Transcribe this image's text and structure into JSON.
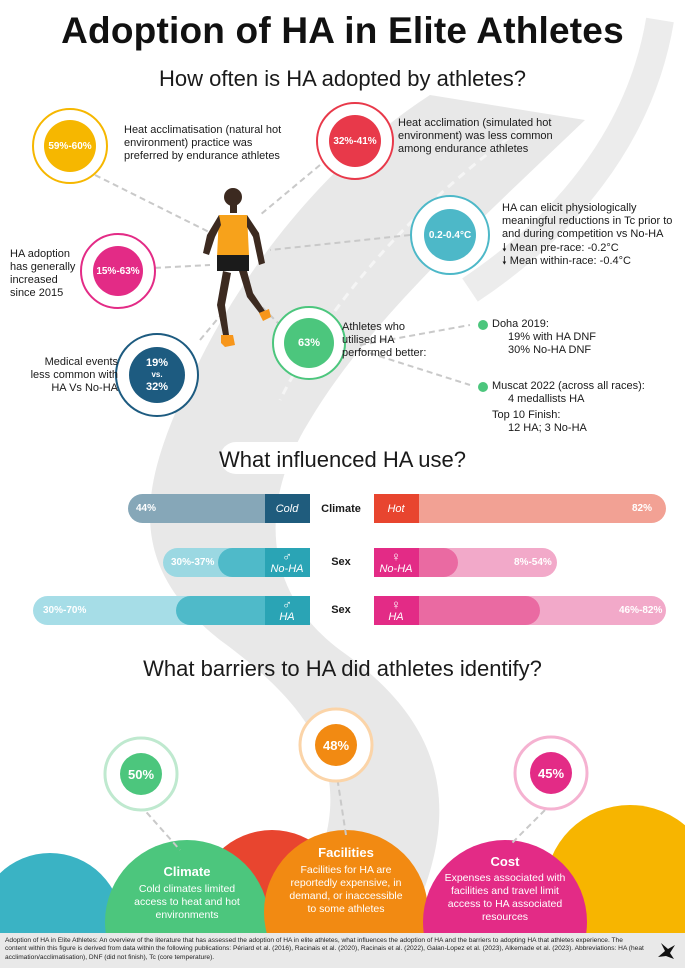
{
  "title": "Adoption of HA in Elite Athletes",
  "section1": {
    "heading": "How often is HA adopted by athletes?",
    "stats": [
      {
        "value": "59%-60%",
        "text": "Heat acclimatisation (natural hot environment) practice was preferred by endurance athletes",
        "color": "#f6b700"
      },
      {
        "value": "32%-41%",
        "text": "Heat acclimation (simulated hot environment) was less common among endurance athletes",
        "color": "#e8394a"
      },
      {
        "value": "0.2-0.4°C",
        "text": "HA can elicit physiologically meaningful reductions in Tc prior to and during competition vs No-HA",
        "color": "#4db8c8",
        "extra1": "Mean pre-race: -0.2°C",
        "extra2": "Mean within-race: -0.4°C"
      },
      {
        "value": "15%-63%",
        "text": "HA adoption has generally increased since 2015",
        "color": "#e32b86"
      },
      {
        "value": "63%",
        "text": "Athletes who utilised HA performed better:",
        "color": "#4cc67d"
      },
      {
        "value_line1": "19%",
        "value_mid": "vs.",
        "value_line2": "32%",
        "text": "Medical events less common with HA Vs No-HA",
        "color": "#1d5b80"
      }
    ],
    "doha": {
      "title": "Doha 2019:",
      "line1": "19% with HA DNF",
      "line2": "30% No-HA DNF"
    },
    "muscat": {
      "title": "Muscat 2022 (across all races):",
      "line1": "4 medallists HA",
      "line2": "Top 10 Finish:",
      "line3": "12 HA; 3 No-HA"
    }
  },
  "section2": {
    "heading": "What influenced HA use?",
    "rows": [
      {
        "category": "Climate",
        "left_value": "44%",
        "left_tag": "Cold",
        "right_value": "82%",
        "right_tag": "Hot"
      },
      {
        "category": "Sex",
        "left_value": "30%-37%",
        "left_tag": "No-HA",
        "left_symbol": "♂",
        "right_value": "8%-54%",
        "right_tag": "No-HA",
        "right_symbol": "♀"
      },
      {
        "category": "Sex",
        "left_value": "30%-70%",
        "left_tag": "HA",
        "left_symbol": "♂",
        "right_value": "46%-82%",
        "right_tag": "HA",
        "right_symbol": "♀"
      }
    ]
  },
  "section3": {
    "heading": "What barriers to HA did athletes identify?",
    "barriers": [
      {
        "value": "50%",
        "title": "Climate",
        "text": "Cold climates limited access to heat and hot environments",
        "color": "#4cc67d"
      },
      {
        "value": "48%",
        "title": "Facilities",
        "text": "Facilities for HA are reportedly expensive, in demand, or inaccessible to some athletes",
        "color": "#f28a12"
      },
      {
        "value": "45%",
        "title": "Cost",
        "text": "Expenses associated with facilities and travel limit access to HA associated resources",
        "color": "#e32b86"
      }
    ]
  },
  "footer": "Adoption of HA in Elite Athletes: An overview of the literature that has assessed the adoption of HA in elite athletes, what influences the adoption of HA and the barriers to adopting HA that athletes experience. The content within this figure is derived from data within the following publications: Périard et al. (2016), Racinais et al. (2020),  Racinais et al. (2022), Galan-Lopez et al. (2023), Alkemade et al. (2023). Abbreviations: HA (heat acclimation/acclimatisation), DNF (did not finish), Tc (core temperature)."
}
